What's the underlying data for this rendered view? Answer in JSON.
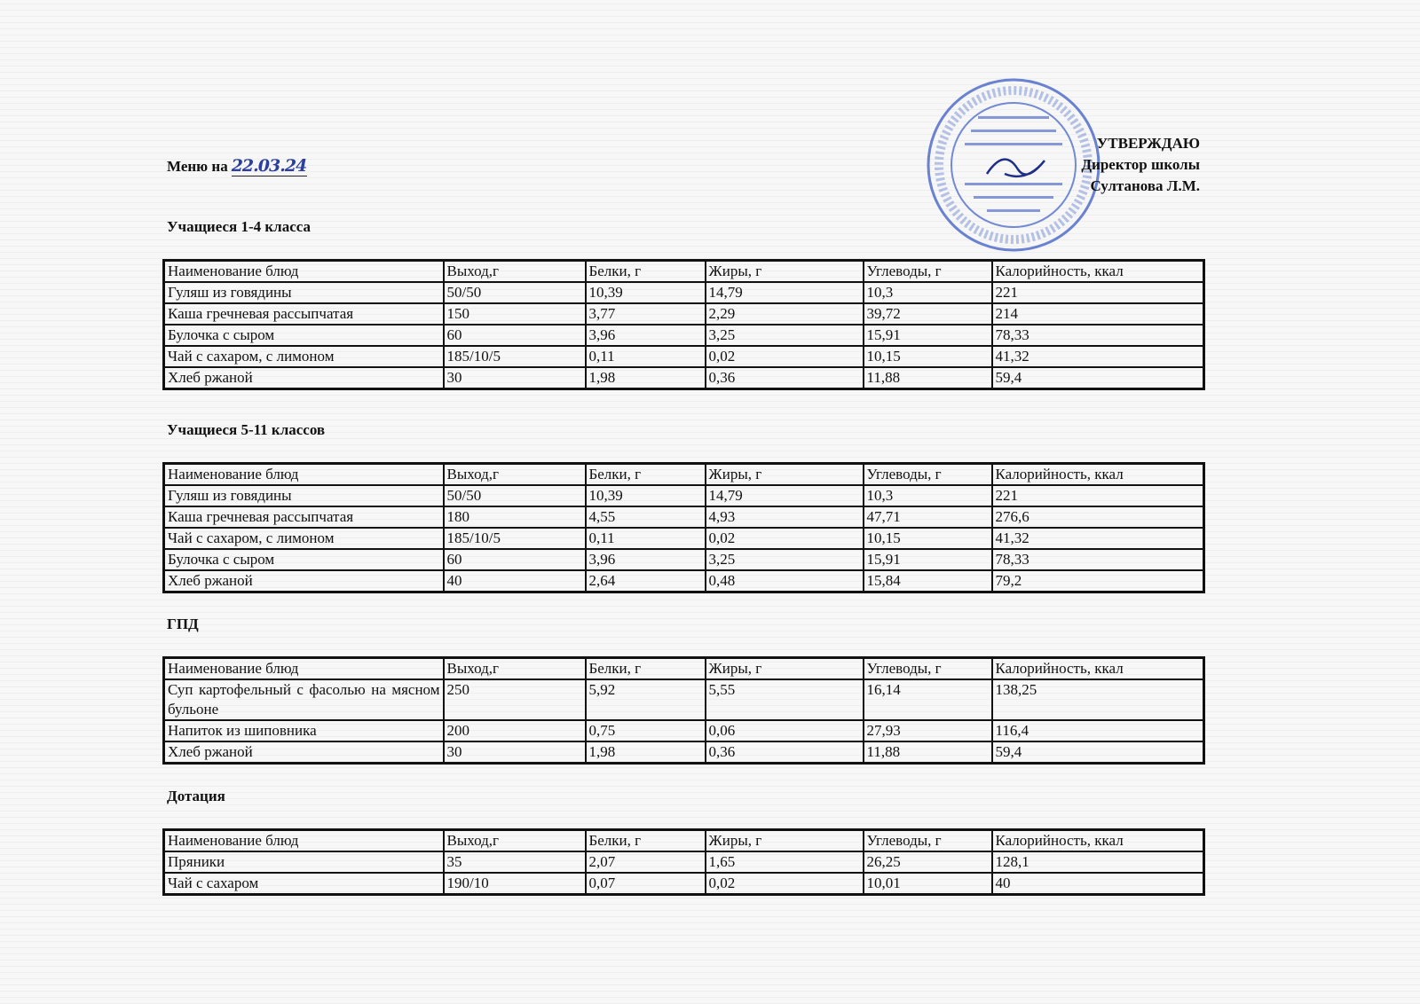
{
  "header": {
    "menu_label": "Меню на",
    "date": "22.03.24",
    "approval": [
      "УТВЕРЖДАЮ",
      "Директор школы",
      "Султанова Л.М."
    ],
    "stamp_text": "Муниципальное бюджетное общеобразовательное учреждение Средняя общеобразовательная школа №5 с углубленным изучением английского языка ИНН 1643004003"
  },
  "columns": [
    "Наименование блюд",
    "Выход,г",
    "Белки, г",
    "Жиры, г",
    "Углеводы, г",
    "Калорийность, ккал"
  ],
  "sections": [
    {
      "title": "Учащиеся 1-4 класса",
      "rows": [
        [
          "Гуляш из говядины",
          "50/50",
          "10,39",
          "14,79",
          "10,3",
          "221"
        ],
        [
          "Каша гречневая рассыпчатая",
          "150",
          "3,77",
          "2,29",
          "39,72",
          "214"
        ],
        [
          "Булочка с сыром",
          "60",
          "3,96",
          "3,25",
          "15,91",
          "78,33"
        ],
        [
          "Чай с сахаром, с лимоном",
          "185/10/5",
          "0,11",
          "0,02",
          "10,15",
          "41,32"
        ],
        [
          "Хлеб ржаной",
          "30",
          "1,98",
          "0,36",
          "11,88",
          "59,4"
        ]
      ]
    },
    {
      "title": "Учащиеся 5-11 классов",
      "rows": [
        [
          "Гуляш из говядины",
          "50/50",
          "10,39",
          "14,79",
          "10,3",
          "221"
        ],
        [
          "Каша гречневая рассыпчатая",
          "180",
          "4,55",
          "4,93",
          "47,71",
          "276,6"
        ],
        [
          "Чай с сахаром, с лимоном",
          "185/10/5",
          "0,11",
          "0,02",
          "10,15",
          "41,32"
        ],
        [
          "Булочка с сыром",
          "60",
          "3,96",
          "3,25",
          "15,91",
          "78,33"
        ],
        [
          "Хлеб ржаной",
          "40",
          "2,64",
          "0,48",
          "15,84",
          "79,2"
        ]
      ]
    },
    {
      "title": "ГПД",
      "rows": [
        [
          "Суп картофельный с фасолью на мясном бульоне",
          "250",
          "5,92",
          "5,55",
          "16,14",
          "138,25"
        ],
        [
          "Напиток из шиповника",
          "200",
          "0,75",
          "0,06",
          "27,93",
          "116,4"
        ],
        [
          "Хлеб ржаной",
          "30",
          "1,98",
          "0,36",
          "11,88",
          "59,4"
        ]
      ]
    },
    {
      "title": "Дотация",
      "rows": [
        [
          "Пряники",
          "35",
          "2,07",
          "1,65",
          "26,25",
          "128,1"
        ],
        [
          "Чай с сахаром",
          "190/10",
          "0,07",
          "0,02",
          "10,01",
          "40"
        ]
      ]
    }
  ]
}
